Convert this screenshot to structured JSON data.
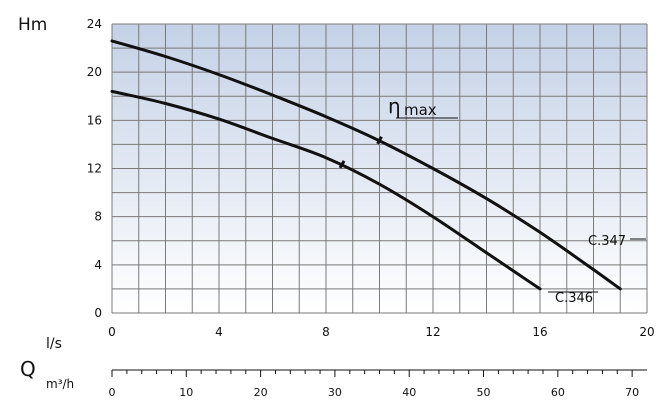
{
  "chart_data": {
    "type": "line",
    "ylabel": "Hm",
    "xlabel_ls": "l/s",
    "xlabel_m3h_unit": "m³/h",
    "q_symbol": "Q",
    "eta_symbol": "η",
    "eta_text": "max",
    "x_unit": "l/s",
    "xlim": [
      0,
      20
    ],
    "ylim": [
      0,
      24
    ],
    "x_ticks": [
      0,
      4,
      8,
      12,
      16,
      20
    ],
    "x_tick_labels": [
      "0",
      "4",
      "8",
      "12",
      "16",
      "20"
    ],
    "y_ticks": [
      0,
      4,
      8,
      12,
      16,
      20,
      24
    ],
    "y_tick_labels": [
      "0",
      "4",
      "8",
      "12",
      "16",
      "20",
      "24"
    ],
    "grid": true,
    "series": [
      {
        "name": "C.347",
        "x": [
          0,
          2,
          4,
          6,
          8,
          10,
          12,
          14,
          16,
          18,
          19
        ],
        "y": [
          22.6,
          21.3,
          19.8,
          18.1,
          16.3,
          14.3,
          12.0,
          9.5,
          6.7,
          3.6,
          2.0
        ]
      },
      {
        "name": "C.346",
        "x": [
          0,
          2,
          4,
          6,
          8,
          10,
          12,
          14,
          15,
          16
        ],
        "y": [
          18.4,
          17.4,
          16.1,
          14.5,
          12.9,
          10.7,
          8.0,
          5.0,
          3.5,
          2.0
        ]
      }
    ],
    "efficiency_marks": [
      {
        "series": "C.347",
        "x": 10.0,
        "y": 14.3
      },
      {
        "series": "C.346",
        "x": 8.6,
        "y": 12.3
      }
    ],
    "secondary_axis": {
      "unit": "m³/h",
      "range": [
        0,
        70
      ],
      "ticks": [
        0,
        10,
        20,
        30,
        40,
        50,
        60,
        70
      ],
      "tick_labels": [
        "0",
        "10",
        "20",
        "30",
        "40",
        "50",
        "60",
        "70"
      ],
      "minor_step": 2
    },
    "colors": {
      "curve": "#111111",
      "grid": "#7a7a7a",
      "background_top": "#c4d1e6",
      "background_bottom": "#ffffff"
    }
  }
}
